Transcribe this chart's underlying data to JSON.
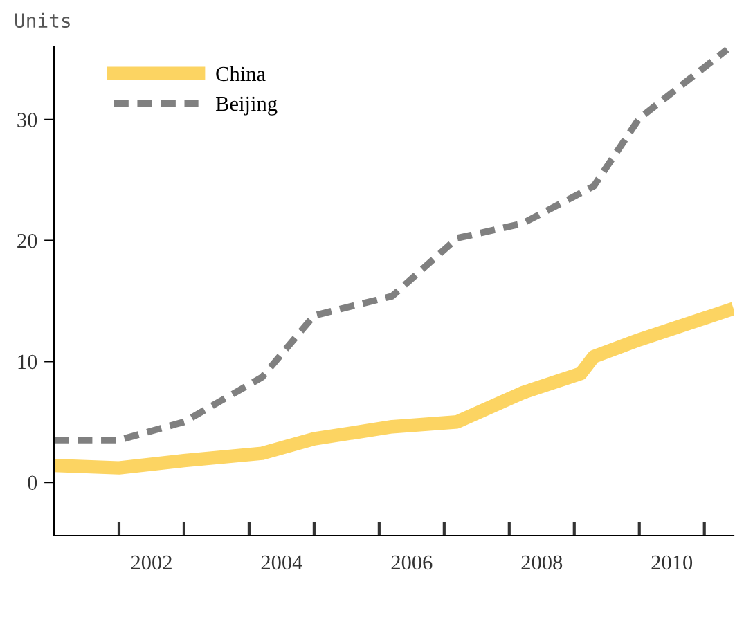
{
  "chart_data": {
    "type": "line",
    "ylabel": "Units",
    "x": [
      2001.0,
      2002.0,
      2003.0,
      2004.2,
      2005.0,
      2006.2,
      2007.2,
      2008.2,
      2009.1,
      2009.3,
      2010.0,
      2011.35
    ],
    "series": [
      {
        "name": "China",
        "color": "#fcd462",
        "line_style": "solid",
        "values": [
          1.4,
          1.2,
          1.8,
          2.4,
          3.6,
          4.6,
          5.0,
          7.4,
          9.0,
          10.4,
          11.8,
          14.2
        ]
      },
      {
        "name": "Beijing",
        "color": "#808080",
        "line_style": "dashed",
        "x": [
          2001.0,
          2002.0,
          2003.0,
          2004.2,
          2005.0,
          2006.2,
          2007.2,
          2008.2,
          2009.3,
          2010.0,
          2011.35
        ],
        "values": [
          3.5,
          3.5,
          5.0,
          8.7,
          13.8,
          15.4,
          20.2,
          21.4,
          24.5,
          30.1,
          35.8
        ]
      }
    ],
    "xlim": [
      2001.0,
      2011.45
    ],
    "ylim": [
      -4.4,
      36
    ],
    "xticks": [
      {
        "value": 2002,
        "label": null
      },
      {
        "value": 2002.5,
        "label": "2002"
      },
      {
        "value": 2003,
        "label": null
      },
      {
        "value": 2004,
        "label": null
      },
      {
        "value": 2004.5,
        "label": "2004"
      },
      {
        "value": 2005,
        "label": null
      },
      {
        "value": 2006,
        "label": null
      },
      {
        "value": 2006.5,
        "label": "2006"
      },
      {
        "value": 2007,
        "label": null
      },
      {
        "value": 2008,
        "label": null
      },
      {
        "value": 2008.5,
        "label": "2008"
      },
      {
        "value": 2009,
        "label": null
      },
      {
        "value": 2010,
        "label": null
      },
      {
        "value": 2010.5,
        "label": "2010"
      },
      {
        "value": 2011,
        "label": null
      }
    ],
    "yticks": [
      0,
      10,
      20,
      30
    ],
    "grid": false,
    "legend": "top left"
  }
}
